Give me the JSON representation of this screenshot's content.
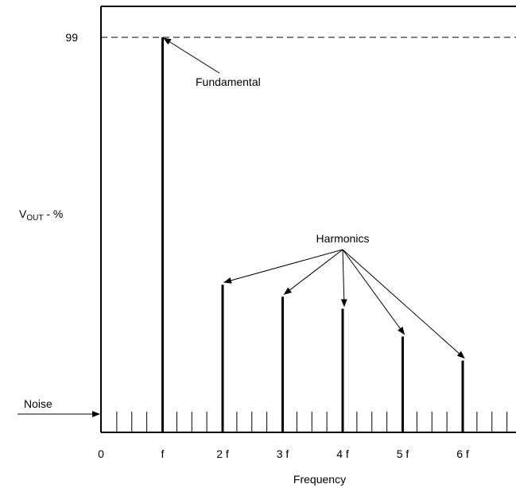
{
  "chart_data": {
    "type": "bar",
    "title": "",
    "ylabel_main": "V",
    "ylabel_sub": "OUT",
    "ylabel_suffix": " - %",
    "xlabel": "Frequency",
    "y_tick_label": "99",
    "y_reference_value": 99,
    "x_tick_labels": [
      "0",
      "f",
      "2 f",
      "3 f",
      "4 f",
      "5 f",
      "6 f"
    ],
    "bars": [
      {
        "x": 1,
        "value": 99
      },
      {
        "x": 2,
        "value": 37
      },
      {
        "x": 3,
        "value": 34
      },
      {
        "x": 4,
        "value": 31
      },
      {
        "x": 5,
        "value": 24
      },
      {
        "x": 6,
        "value": 18
      }
    ],
    "noise_level": 4,
    "annotations": {
      "fundamental": "Fundamental",
      "harmonics": "Harmonics",
      "noise": "Noise"
    }
  }
}
